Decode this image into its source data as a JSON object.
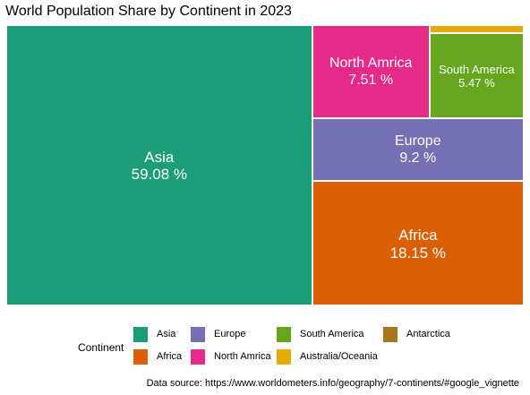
{
  "title": "World Population Share by Continent in 2023",
  "caption": "Data source: https://www.worldometers.info/geography/7-continents/#google_vignette",
  "chart_data": {
    "type": "treemap",
    "title": "World Population Share by Continent in 2023",
    "unit": "%",
    "series": [
      {
        "name": "Asia",
        "value": 59.08,
        "label": "Asia",
        "value_label": "59.08 %",
        "color": "#1B9E77"
      },
      {
        "name": "Africa",
        "value": 18.15,
        "label": "Africa",
        "value_label": "18.15 %",
        "color": "#D95F02"
      },
      {
        "name": "Europe",
        "value": 9.2,
        "label": "Europe",
        "value_label": "9.2 %",
        "color": "#7570B3"
      },
      {
        "name": "North America",
        "value": 7.51,
        "label": "North Amrica",
        "value_label": "7.51 %",
        "color": "#E7298A"
      },
      {
        "name": "South America",
        "value": 5.47,
        "label": "South America",
        "value_label": "5.47 %",
        "color": "#66A61E"
      },
      {
        "name": "Australia/Oceania",
        "value": 0.55,
        "label": "",
        "value_label": "",
        "color": "#E6AB02"
      },
      {
        "name": "Antarctica",
        "value": 0.0,
        "label": "",
        "value_label": "",
        "color": "#A6761D"
      }
    ],
    "legend": {
      "title": "Continent",
      "position": "bottom",
      "items": [
        {
          "label": "Asia",
          "color": "#1B9E77"
        },
        {
          "label": "Europe",
          "color": "#7570B3"
        },
        {
          "label": "South America",
          "color": "#66A61E"
        },
        {
          "label": "Antarctica",
          "color": "#A6761D"
        },
        {
          "label": "Africa",
          "color": "#D95F02"
        },
        {
          "label": "North Amrica",
          "color": "#E7298A"
        },
        {
          "label": "Australia/Oceania",
          "color": "#E6AB02"
        }
      ]
    }
  }
}
